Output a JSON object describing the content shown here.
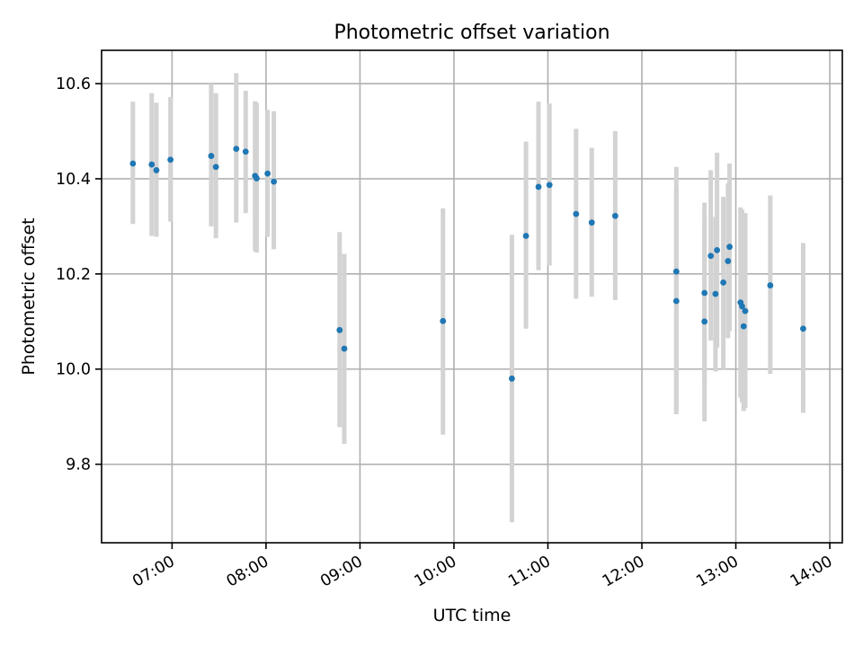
{
  "chart_data": {
    "type": "scatter",
    "title": "Photometric offset variation",
    "xlabel": "UTC time",
    "ylabel": "Photometric offset",
    "xlim": [
      "06:15",
      "14:08"
    ],
    "ylim": [
      9.635,
      10.67
    ],
    "x_ticks": [
      "07:00",
      "08:00",
      "09:00",
      "10:00",
      "11:00",
      "12:00",
      "13:00",
      "14:00"
    ],
    "y_ticks": [
      9.8,
      10.0,
      10.2,
      10.4,
      10.6
    ],
    "grid": true,
    "errorbar_color": "#d3d3d3",
    "marker_color": "#1f77b4",
    "points": [
      {
        "t": "06:35",
        "y": 10.432,
        "lo": 10.305,
        "hi": 10.562
      },
      {
        "t": "06:47",
        "y": 10.43,
        "lo": 10.28,
        "hi": 10.58
      },
      {
        "t": "06:50",
        "y": 10.418,
        "lo": 10.278,
        "hi": 10.56
      },
      {
        "t": "06:59",
        "y": 10.44,
        "lo": 10.31,
        "hi": 10.572
      },
      {
        "t": "07:25",
        "y": 10.448,
        "lo": 10.3,
        "hi": 10.6
      },
      {
        "t": "07:28",
        "y": 10.425,
        "lo": 10.275,
        "hi": 10.58
      },
      {
        "t": "07:41",
        "y": 10.463,
        "lo": 10.308,
        "hi": 10.622
      },
      {
        "t": "07:47",
        "y": 10.457,
        "lo": 10.328,
        "hi": 10.585
      },
      {
        "t": "07:53",
        "y": 10.406,
        "lo": 10.248,
        "hi": 10.563
      },
      {
        "t": "07:54",
        "y": 10.401,
        "lo": 10.245,
        "hi": 10.56
      },
      {
        "t": "08:01",
        "y": 10.411,
        "lo": 10.278,
        "hi": 10.545
      },
      {
        "t": "08:05",
        "y": 10.394,
        "lo": 10.252,
        "hi": 10.542
      },
      {
        "t": "08:47",
        "y": 10.082,
        "lo": 9.878,
        "hi": 10.288
      },
      {
        "t": "08:50",
        "y": 10.043,
        "lo": 9.843,
        "hi": 10.242
      },
      {
        "t": "09:53",
        "y": 10.101,
        "lo": 9.862,
        "hi": 10.338
      },
      {
        "t": "10:37",
        "y": 9.98,
        "lo": 9.678,
        "hi": 10.282
      },
      {
        "t": "10:46",
        "y": 10.28,
        "lo": 10.085,
        "hi": 10.478
      },
      {
        "t": "10:54",
        "y": 10.383,
        "lo": 10.208,
        "hi": 10.562
      },
      {
        "t": "11:01",
        "y": 10.387,
        "lo": 10.218,
        "hi": 10.558
      },
      {
        "t": "11:18",
        "y": 10.326,
        "lo": 10.148,
        "hi": 10.505
      },
      {
        "t": "11:28",
        "y": 10.308,
        "lo": 10.152,
        "hi": 10.465
      },
      {
        "t": "11:43",
        "y": 10.322,
        "lo": 10.145,
        "hi": 10.5
      },
      {
        "t": "12:22",
        "y": 10.205,
        "lo": 9.905,
        "hi": 10.425
      },
      {
        "t": "12:22",
        "y": 10.143,
        "lo": 9.908,
        "hi": 10.38
      },
      {
        "t": "12:40",
        "y": 10.16,
        "lo": 9.97,
        "hi": 10.35
      },
      {
        "t": "12:40",
        "y": 10.1,
        "lo": 9.89,
        "hi": 10.31
      },
      {
        "t": "12:44",
        "y": 10.238,
        "lo": 10.06,
        "hi": 10.418
      },
      {
        "t": "12:47",
        "y": 10.158,
        "lo": 9.995,
        "hi": 10.32
      },
      {
        "t": "12:48",
        "y": 10.25,
        "lo": 10.045,
        "hi": 10.455
      },
      {
        "t": "12:52",
        "y": 10.182,
        "lo": 10.0,
        "hi": 10.362
      },
      {
        "t": "12:55",
        "y": 10.227,
        "lo": 10.065,
        "hi": 10.39
      },
      {
        "t": "12:56",
        "y": 10.257,
        "lo": 10.08,
        "hi": 10.432
      },
      {
        "t": "13:03",
        "y": 10.14,
        "lo": 9.94,
        "hi": 10.34
      },
      {
        "t": "13:04",
        "y": 10.132,
        "lo": 9.93,
        "hi": 10.335
      },
      {
        "t": "13:05",
        "y": 10.09,
        "lo": 9.912,
        "hi": 10.3
      },
      {
        "t": "13:06",
        "y": 10.122,
        "lo": 9.918,
        "hi": 10.328
      },
      {
        "t": "13:22",
        "y": 10.176,
        "lo": 9.99,
        "hi": 10.365
      },
      {
        "t": "13:43",
        "y": 10.085,
        "lo": 9.908,
        "hi": 10.265
      }
    ]
  }
}
